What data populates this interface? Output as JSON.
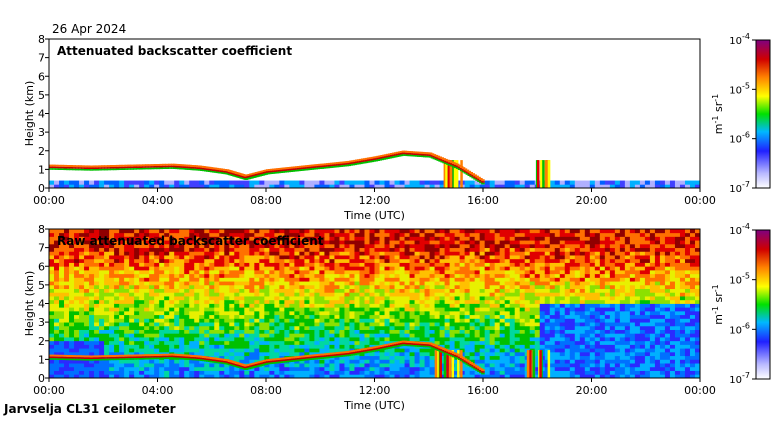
{
  "header": {
    "date": "26 Apr 2024"
  },
  "footer": {
    "station": "Jarvselja CL31 ceilometer"
  },
  "colors": {
    "scale": [
      "#d8d8ff",
      "#3b3bff",
      "#00a8ff",
      "#00e0c0",
      "#00c000",
      "#c8f000",
      "#ffff00",
      "#ff8000",
      "#e00000",
      "#900000",
      "#800080"
    ]
  },
  "chart_data": [
    {
      "type": "heatmap",
      "title": "Attenuated backscatter coefficient",
      "xlabel": "Time (UTC)",
      "ylabel": "Height (km)",
      "xlim": [
        0,
        24
      ],
      "ylim": [
        0,
        8
      ],
      "x_ticks": [
        "00:00",
        "04:00",
        "08:00",
        "12:00",
        "16:00",
        "20:00",
        "00:00"
      ],
      "y_ticks": [
        "0",
        "1",
        "2",
        "3",
        "4",
        "5",
        "6",
        "7",
        "8"
      ],
      "colorbar": {
        "ticks_exp": [
          "-4",
          "-5",
          "-6",
          "-7"
        ],
        "base": "10",
        "unit_main": "m",
        "unit_exp1": "-1",
        "unit_mid": " sr",
        "unit_exp2": "-1"
      },
      "cloud_base_km": [
        [
          0,
          1.15
        ],
        [
          1.5,
          1.1
        ],
        [
          3,
          1.15
        ],
        [
          4.5,
          1.2
        ],
        [
          5.5,
          1.1
        ],
        [
          6.5,
          0.9
        ],
        [
          7.2,
          0.6
        ],
        [
          8,
          0.9
        ],
        [
          9,
          1.05
        ],
        [
          10,
          1.2
        ],
        [
          11,
          1.35
        ],
        [
          12,
          1.6
        ],
        [
          13,
          1.9
        ],
        [
          14,
          1.8
        ],
        [
          15,
          1.2
        ],
        [
          16,
          0.3
        ]
      ],
      "precipitation_periods_h": [
        [
          14.2,
          15.2
        ],
        [
          17.6,
          18.4
        ]
      ],
      "clutter_fill": "sparse"
    },
    {
      "type": "heatmap",
      "title": "Raw attenuated backscatter coefficient",
      "xlabel": "Time (UTC)",
      "ylabel": "Height (km)",
      "xlim": [
        0,
        24
      ],
      "ylim": [
        0,
        8
      ],
      "x_ticks": [
        "00:00",
        "04:00",
        "08:00",
        "12:00",
        "16:00",
        "20:00",
        "00:00"
      ],
      "y_ticks": [
        "0",
        "1",
        "2",
        "3",
        "4",
        "5",
        "6",
        "7",
        "8"
      ],
      "colorbar": {
        "ticks_exp": [
          "-4",
          "-5",
          "-6",
          "-7"
        ],
        "base": "10",
        "unit_main": "m",
        "unit_exp1": "-1",
        "unit_mid": " sr",
        "unit_exp2": "-1"
      },
      "cloud_base_km": [
        [
          0,
          1.15
        ],
        [
          1.5,
          1.1
        ],
        [
          3,
          1.15
        ],
        [
          4.5,
          1.2
        ],
        [
          5.5,
          1.1
        ],
        [
          6.5,
          0.9
        ],
        [
          7.2,
          0.6
        ],
        [
          8,
          0.9
        ],
        [
          9,
          1.05
        ],
        [
          10,
          1.2
        ],
        [
          11,
          1.35
        ],
        [
          12,
          1.6
        ],
        [
          13,
          1.9
        ],
        [
          14,
          1.8
        ],
        [
          15,
          1.2
        ],
        [
          16,
          0.3
        ]
      ],
      "precipitation_periods_h": [
        [
          14.2,
          15.2
        ],
        [
          17.6,
          18.4
        ]
      ],
      "clutter_fill": "dense"
    }
  ]
}
